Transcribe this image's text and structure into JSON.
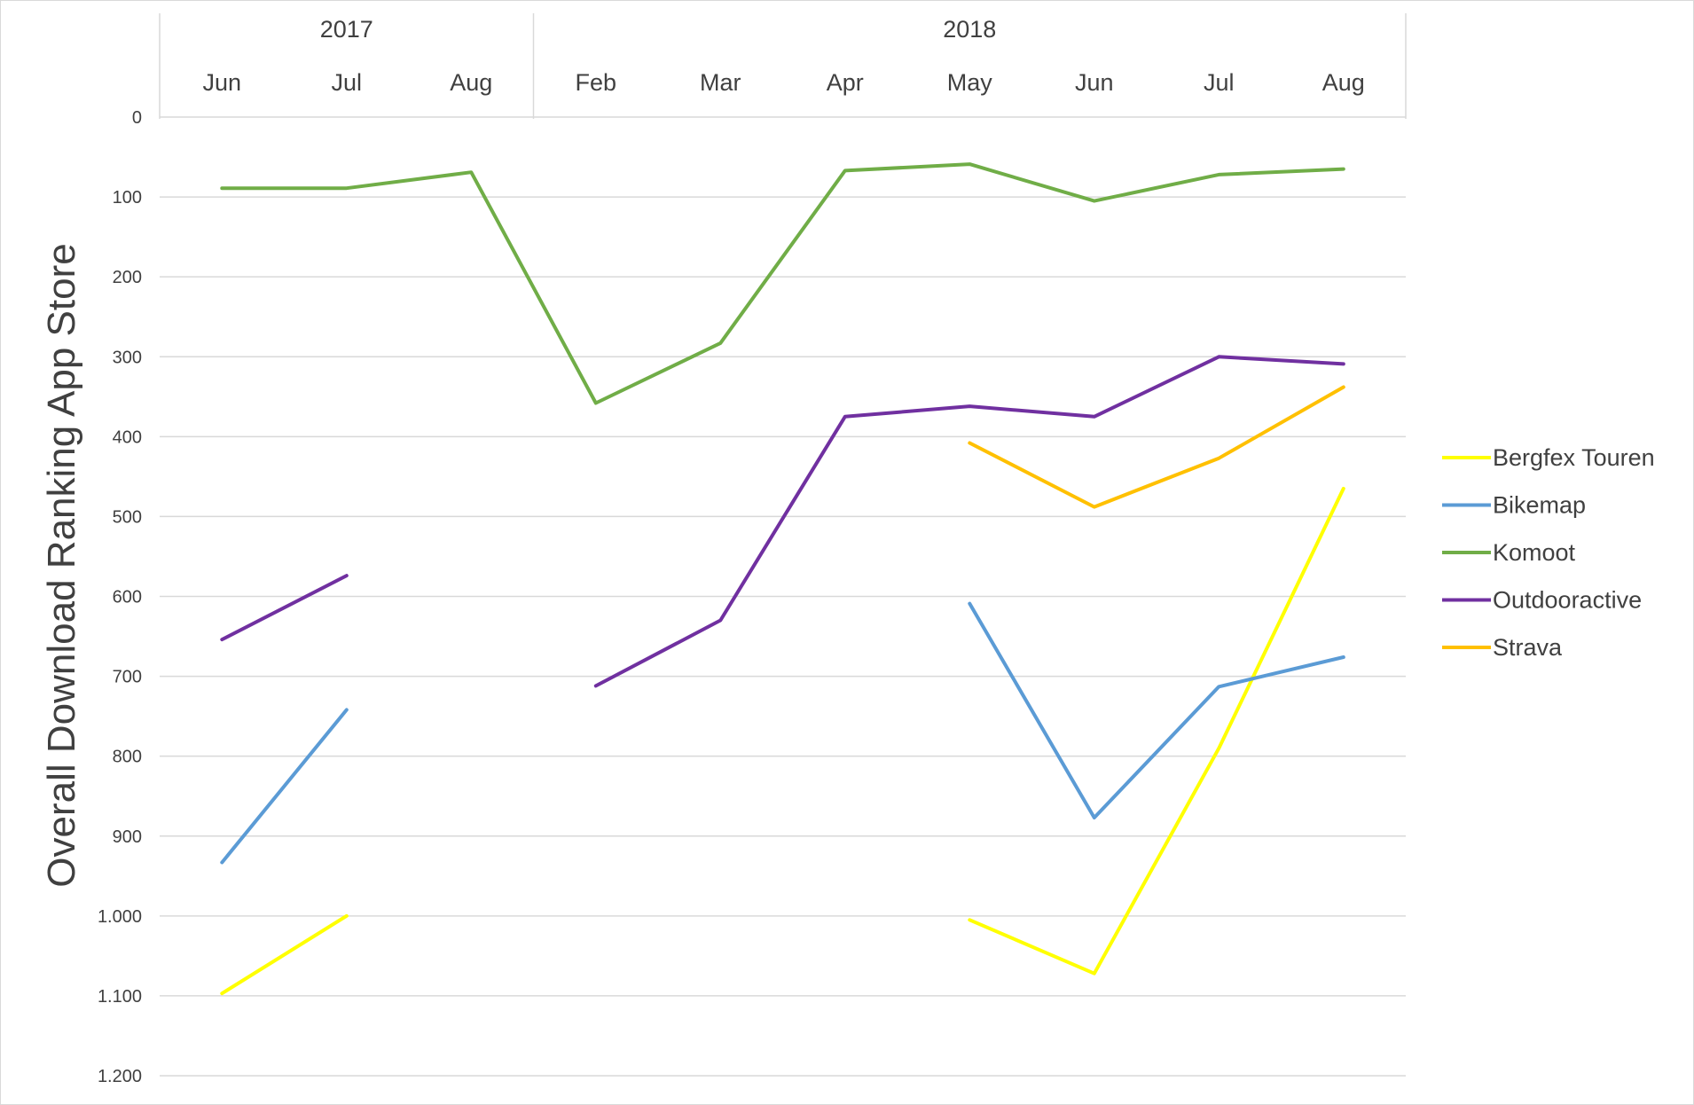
{
  "chart_data": {
    "type": "line",
    "ylabel": "Overall Download Ranking App Store",
    "y_axis_reversed": true,
    "ylim": [
      0,
      1200
    ],
    "y_ticks": [
      {
        "value": 0,
        "label": "0"
      },
      {
        "value": 100,
        "label": "100"
      },
      {
        "value": 200,
        "label": "200"
      },
      {
        "value": 300,
        "label": "300"
      },
      {
        "value": 400,
        "label": "400"
      },
      {
        "value": 500,
        "label": "500"
      },
      {
        "value": 600,
        "label": "600"
      },
      {
        "value": 700,
        "label": "700"
      },
      {
        "value": 800,
        "label": "800"
      },
      {
        "value": 900,
        "label": "900"
      },
      {
        "value": 1000,
        "label": "1.000"
      },
      {
        "value": 1100,
        "label": "1.100"
      },
      {
        "value": 1200,
        "label": "1.200"
      }
    ],
    "categories": [
      "Jun",
      "Jul",
      "Aug",
      "Feb",
      "Mar",
      "Apr",
      "May",
      "Jun",
      "Jul",
      "Aug"
    ],
    "year_groups": [
      {
        "label": "2017",
        "count": 3
      },
      {
        "label": "2018",
        "count": 7
      }
    ],
    "grid": true,
    "legend_position": "right",
    "series": [
      {
        "name": "Bergfex Touren",
        "color": "#FFFF00",
        "values": [
          1097,
          1000,
          null,
          null,
          null,
          null,
          1005,
          1072,
          790,
          465
        ]
      },
      {
        "name": "Bikemap",
        "color": "#5B9BD5",
        "values": [
          933,
          742,
          null,
          null,
          null,
          null,
          609,
          877,
          713,
          676
        ]
      },
      {
        "name": "Komoot",
        "color": "#70AD47",
        "values": [
          89,
          89,
          69,
          358,
          283,
          67,
          59,
          105,
          72,
          65
        ]
      },
      {
        "name": "Outdooractive",
        "color": "#7030A0",
        "values": [
          654,
          574,
          null,
          712,
          630,
          375,
          362,
          375,
          300,
          309
        ]
      },
      {
        "name": "Strava",
        "color": "#FFC000",
        "values": [
          null,
          null,
          null,
          null,
          null,
          null,
          408,
          488,
          427,
          338
        ]
      }
    ]
  }
}
